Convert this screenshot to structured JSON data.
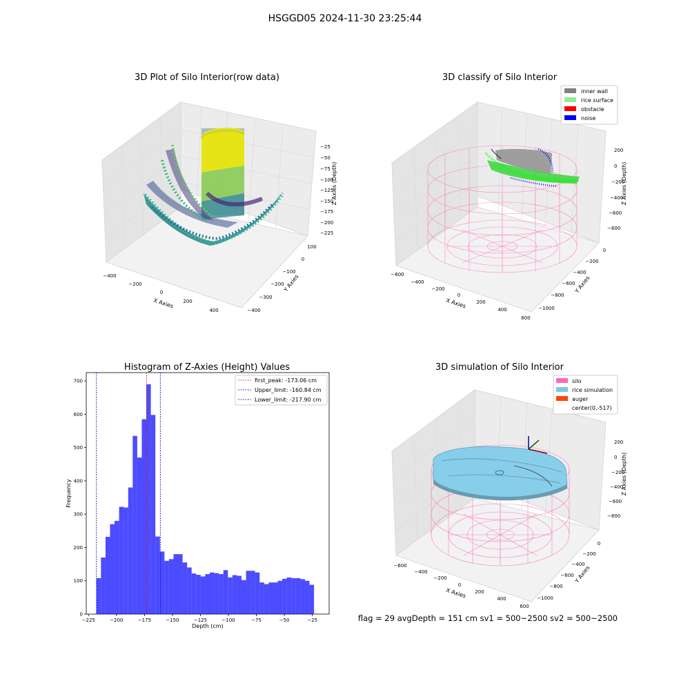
{
  "figure": {
    "suptitle": "HSGGD05 2024-11-30 23:25:44",
    "status_line": "flag = 29  avgDepth = 151 cm  sv1 = 500~2500  sv2 = 500~2500"
  },
  "panels": {
    "raw": {
      "title": "3D Plot of Silo Interior(row data)",
      "xlabel": "X Axies",
      "ylabel": "Y Axies",
      "zlabel": "Z Axies (Depth)",
      "xticks": [
        "−400",
        "−200",
        "0",
        "200",
        "400"
      ],
      "yticks": [
        "100",
        "0",
        "−100",
        "−200",
        "−300",
        "−400"
      ],
      "zticks": [
        "−25",
        "−50",
        "−75",
        "−100",
        "−125",
        "−150",
        "−175",
        "−200",
        "−225"
      ]
    },
    "classify": {
      "title": "3D classify of Silo Interior",
      "xlabel": "X Axies",
      "ylabel": "Y Axies",
      "zlabel": "Z Axies (Depth)",
      "xticks": [
        "−600",
        "−400",
        "−200",
        "0",
        "200",
        "400",
        "600"
      ],
      "yticks": [
        "0",
        "−200",
        "−400",
        "−600",
        "−800",
        "−1000"
      ],
      "zticks": [
        "200",
        "0",
        "−200",
        "−400",
        "−600",
        "−800"
      ],
      "legend": [
        {
          "label": "inner wall",
          "color": "#808080"
        },
        {
          "label": "rice surface",
          "color": "#90ee90"
        },
        {
          "label": "obstacle",
          "color": "#ff0000"
        },
        {
          "label": "noise",
          "color": "#0000ff"
        }
      ]
    },
    "simulation": {
      "title": "3D simulation of Silo Interior",
      "xlabel": "X Axies",
      "ylabel": "Y Axies",
      "zlabel": "Z Axies (Depth)",
      "xticks": [
        "−600",
        "−400",
        "−200",
        "0",
        "200",
        "400",
        "600"
      ],
      "yticks": [
        "0",
        "−200",
        "−400",
        "−600",
        "−800",
        "−1000"
      ],
      "zticks": [
        "200",
        "0",
        "−200",
        "−400",
        "−600",
        "−800"
      ],
      "legend": [
        {
          "label": "silo",
          "color": "#ff69b4"
        },
        {
          "label": "rice simulation",
          "color": "#7ec8e3"
        },
        {
          "label": "auger",
          "color": "#ff4500"
        },
        {
          "label": "center(0,-517)",
          "color": ""
        }
      ]
    }
  },
  "colors": {
    "histogram_bars": "#0000ff",
    "silo_wire": "#ff69b4",
    "rice_green": "#00ff00",
    "rice_blue": "#87ceeb"
  },
  "chart_data": [
    {
      "type": "bar",
      "title": "Histogram of Z-Axies (Height) Values",
      "xlabel": "Depth (cm)",
      "ylabel": "Frequency",
      "xlim": [
        -227,
        -10
      ],
      "ylim": [
        0,
        725
      ],
      "xticks": [
        -225,
        -200,
        -175,
        -150,
        -125,
        -100,
        -75,
        -50,
        -25
      ],
      "xtick_labels": [
        "−225",
        "−200",
        "−175",
        "−150",
        "−125",
        "−100",
        "−75",
        "−50",
        "−25"
      ],
      "yticks": [
        0,
        100,
        200,
        300,
        400,
        500,
        600,
        700
      ],
      "yticks_labels": [
        "0",
        "100",
        "200",
        "300",
        "400",
        "500",
        "600",
        "700"
      ],
      "bin_start": -217.9,
      "bin_width": 4.05,
      "counts": [
        108,
        170,
        232,
        270,
        280,
        322,
        320,
        380,
        535,
        470,
        585,
        690,
        598,
        233,
        188,
        160,
        165,
        180,
        180,
        155,
        140,
        122,
        118,
        113,
        120,
        125,
        123,
        120,
        132,
        110,
        117,
        115,
        102,
        130,
        130,
        125,
        95,
        90,
        95,
        95,
        100,
        106,
        110,
        108,
        108,
        105,
        100,
        88
      ],
      "vlines": [
        {
          "label": "first_peak: -173.06 cm",
          "x": -173.06,
          "color": "#ff0000"
        },
        {
          "label": "Upper_limit: -160.84 cm",
          "x": -160.84,
          "color": "#0000aa"
        },
        {
          "label": "Lower_limit: -217.90 cm",
          "x": -217.9,
          "color": "#0000aa"
        }
      ],
      "legend_position": "upper right"
    }
  ]
}
